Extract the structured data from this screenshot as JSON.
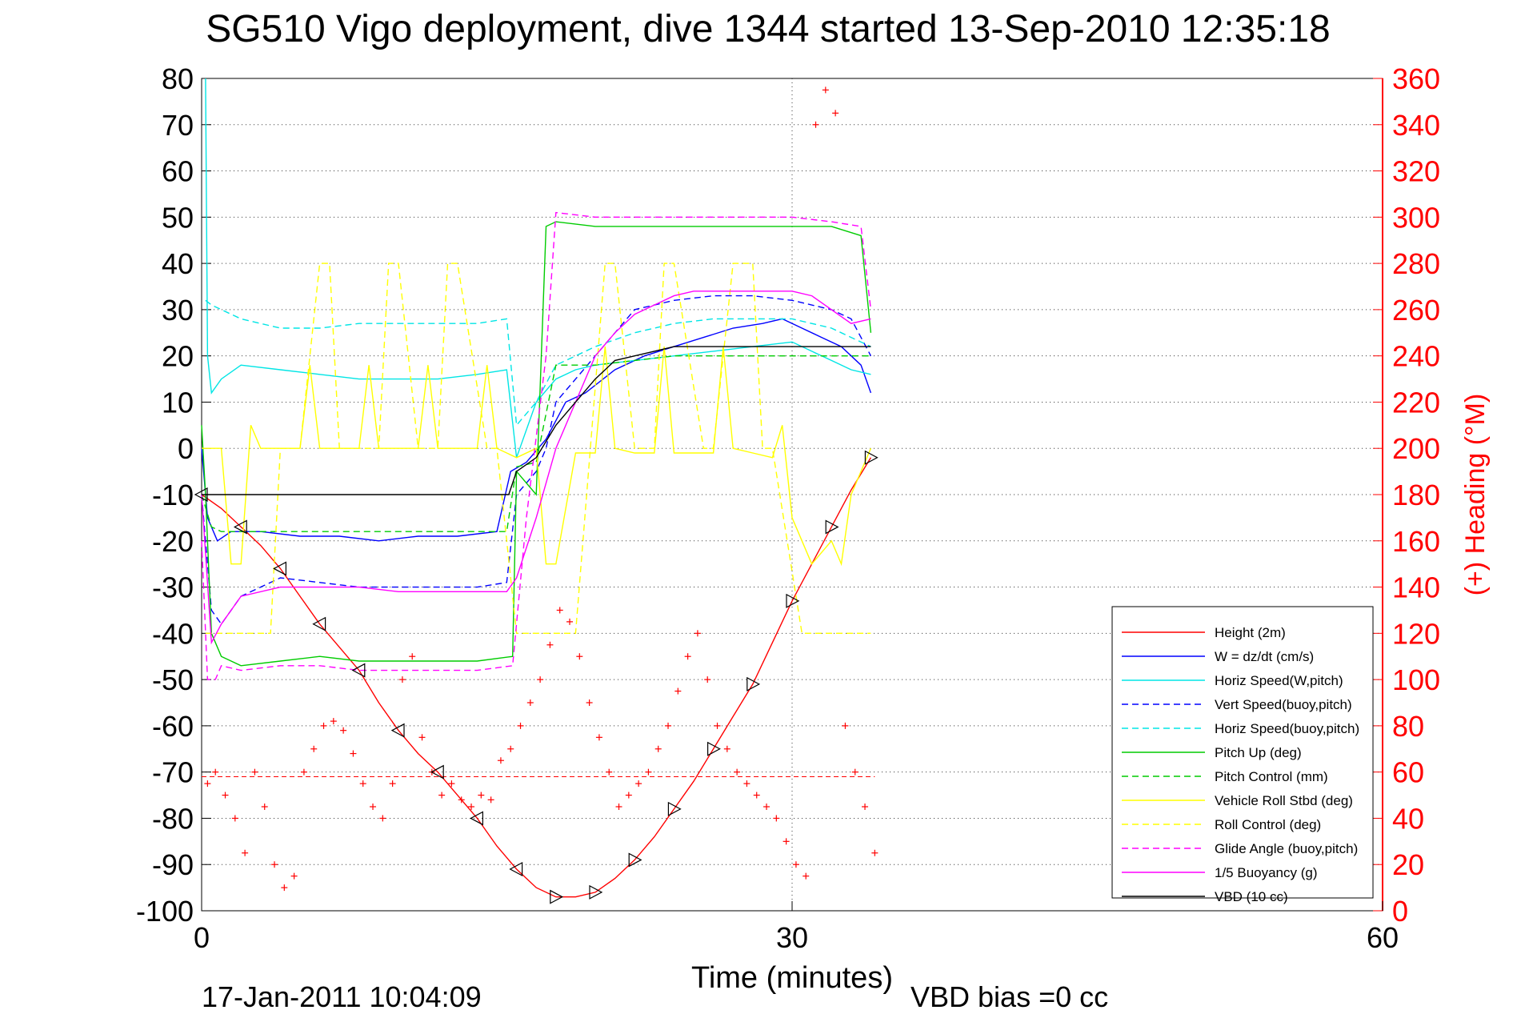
{
  "chart_data": {
    "type": "line",
    "title": "SG510 Vigo deployment, dive 1344 started 13-Sep-2010 12:35:18",
    "xlabel": "Time (minutes)",
    "ylabel_left": "",
    "ylabel_right": "(+) Heading (°M)",
    "xlim": [
      0,
      60
    ],
    "ylim_left": [
      -100,
      80
    ],
    "ylim_right": [
      0,
      360
    ],
    "x_ticks": [
      0,
      30,
      60
    ],
    "y_ticks_left": [
      80,
      70,
      60,
      50,
      40,
      30,
      20,
      10,
      0,
      -10,
      -20,
      -30,
      -40,
      -50,
      -60,
      -70,
      -80,
      -90,
      -100
    ],
    "y_ticks_right": [
      360,
      340,
      320,
      300,
      280,
      260,
      240,
      220,
      200,
      180,
      160,
      140,
      120,
      100,
      80,
      60,
      40,
      20,
      0
    ],
    "grid": "dotted",
    "legend_position": "bottom-right",
    "footer_left": "17-Jan-2011 10:04:09",
    "footer_right": "VBD bias =0 cc",
    "colors": {
      "red": "#ff0000",
      "blue": "#0000ff",
      "cyan": "#00e5e5",
      "green": "#00cc00",
      "yellow": "#ffff00",
      "magenta": "#ff00ff",
      "black": "#000000"
    },
    "series": [
      {
        "name": "Height (2m)",
        "color": "#ff0000",
        "dash": "solid",
        "x": [
          0,
          1,
          2,
          3,
          4,
          5,
          6,
          7,
          8,
          9,
          10,
          11,
          12,
          13,
          14,
          15,
          16,
          17,
          18,
          19,
          20,
          21,
          22,
          23,
          24,
          25,
          26,
          27,
          28,
          29,
          30,
          31,
          32,
          33,
          34
        ],
        "y": [
          -10,
          -13,
          -17,
          -21,
          -26,
          -32,
          -38,
          -43,
          -48,
          -55,
          -61,
          -66,
          -70,
          -75,
          -80,
          -86,
          -91,
          -95,
          -97,
          -97,
          -96,
          -93,
          -89,
          -84,
          -78,
          -72,
          -65,
          -58,
          -51,
          -42,
          -33,
          -25,
          -17,
          -9,
          -2
        ]
      },
      {
        "name": "W = dz/dt (cm/s)",
        "color": "#0000ff",
        "dash": "solid",
        "x": [
          0,
          0.3,
          0.8,
          1.5,
          3,
          5,
          7,
          9,
          11,
          13,
          15,
          15.7,
          16.5,
          17.5,
          18.5,
          19.5,
          21,
          22.5,
          24,
          25.5,
          27,
          28.5,
          29.5,
          30.5,
          31.5,
          32.5,
          33.5,
          34
        ],
        "y": [
          0,
          -15,
          -20,
          -18,
          -18,
          -19,
          -19,
          -20,
          -19,
          -19,
          -18,
          -5,
          -3,
          2,
          10,
          12,
          17,
          20,
          22,
          24,
          26,
          27,
          28,
          26,
          24,
          22,
          18,
          12
        ]
      },
      {
        "name": "Horiz Speed(W,pitch)",
        "color": "#00e5e5",
        "dash": "solid",
        "x": [
          0.2,
          0.3,
          0.5,
          1,
          2,
          4,
          6,
          8,
          10,
          12,
          14,
          15.5,
          16,
          17,
          18,
          19,
          20,
          22,
          24,
          26,
          28,
          30,
          31,
          32,
          33,
          34
        ],
        "y": [
          80,
          20,
          12,
          15,
          18,
          17,
          16,
          15,
          15,
          15,
          16,
          17,
          -2,
          10,
          15,
          17,
          18,
          19,
          20,
          21,
          22,
          23,
          21,
          19,
          17,
          16
        ]
      },
      {
        "name": "Vert Speed(buoy,pitch)",
        "color": "#0000ff",
        "dash": "dashed",
        "x": [
          0,
          0.5,
          1,
          2,
          4,
          6,
          8,
          10,
          12,
          14,
          15.5,
          16,
          17,
          17.5,
          18,
          19,
          20,
          22,
          24,
          26,
          28,
          30,
          32,
          33,
          34
        ],
        "y": [
          -10,
          -35,
          -38,
          -32,
          -28,
          -29,
          -30,
          -30,
          -30,
          -30,
          -29,
          -10,
          -5,
          0,
          10,
          15,
          20,
          30,
          32,
          33,
          33,
          32,
          30,
          28,
          20
        ]
      },
      {
        "name": "Horiz Speed(buoy,pitch)",
        "color": "#00e5e5",
        "dash": "dashed",
        "x": [
          0.2,
          0.5,
          1,
          2,
          4,
          6,
          8,
          10,
          12,
          14,
          15.5,
          16,
          17,
          18,
          19,
          20,
          22,
          24,
          26,
          28,
          30,
          32,
          33,
          34
        ],
        "y": [
          32,
          31,
          30,
          28,
          26,
          26,
          27,
          27,
          27,
          27,
          28,
          5,
          10,
          18,
          20,
          22,
          25,
          27,
          28,
          28,
          28,
          26,
          24,
          22
        ]
      },
      {
        "name": "Pitch Up (deg)",
        "color": "#00cc00",
        "dash": "solid",
        "x": [
          0,
          0.2,
          0.5,
          1,
          2,
          4,
          6,
          8,
          10,
          12,
          14,
          15.8,
          16,
          17,
          17.5,
          18,
          20,
          22,
          24,
          26,
          28,
          30,
          32,
          33.5,
          34
        ],
        "y": [
          5,
          -10,
          -40,
          -45,
          -47,
          -46,
          -45,
          -46,
          -46,
          -46,
          -46,
          -45,
          -5,
          -10,
          48,
          49,
          48,
          48,
          48,
          48,
          48,
          48,
          48,
          46,
          25
        ]
      },
      {
        "name": "Pitch Control (mm)",
        "color": "#00cc00",
        "dash": "dashed",
        "x": [
          0,
          0.5,
          1,
          3,
          6,
          9,
          12,
          15.5,
          16,
          17,
          18,
          20,
          24,
          28,
          31,
          34
        ],
        "y": [
          -10,
          -17,
          -18,
          -18,
          -18,
          -18,
          -18,
          -18,
          -4,
          -3,
          18,
          18,
          20,
          20,
          20,
          20
        ]
      },
      {
        "name": "Vehicle Roll Stbd (deg)",
        "color": "#ffff00",
        "dash": "solid",
        "x": [
          0,
          1,
          1.5,
          2,
          2.5,
          3,
          4,
          5,
          5.5,
          6,
          7,
          8,
          8.5,
          9,
          10,
          11,
          11.5,
          12,
          13,
          14,
          14.5,
          15,
          16,
          17,
          17.5,
          18,
          19,
          20,
          20.5,
          21,
          22,
          23,
          23.5,
          24,
          25,
          26,
          26.5,
          27,
          28,
          29,
          29.5,
          30,
          31,
          32,
          32.5,
          33,
          34
        ],
        "y": [
          0,
          0,
          -25,
          -25,
          5,
          0,
          0,
          0,
          18,
          0,
          0,
          0,
          18,
          0,
          0,
          0,
          18,
          0,
          0,
          0,
          18,
          0,
          -2,
          0,
          -25,
          -25,
          -1,
          -1,
          22,
          0,
          -1,
          -1,
          22,
          -1,
          -1,
          -1,
          22,
          0,
          -1,
          -2,
          5,
          -15,
          -25,
          -20,
          -25,
          -10,
          0
        ]
      },
      {
        "name": "Roll Control (deg)",
        "color": "#ffff00",
        "dash": "dashed",
        "x": [
          0.2,
          1,
          1.5,
          2,
          3,
          3.5,
          4,
          5,
          6,
          6.5,
          7,
          9,
          9.5,
          10,
          11,
          12,
          12.5,
          13,
          14.5,
          15,
          16,
          17,
          17.5,
          18,
          19,
          20.5,
          21,
          22,
          23,
          23.5,
          24,
          25.5,
          26,
          27,
          28,
          28.5,
          29,
          30.5,
          31,
          32,
          33,
          34
        ],
        "y": [
          -40,
          -40,
          -40,
          -40,
          -40,
          -40,
          0,
          0,
          40,
          40,
          0,
          0,
          40,
          40,
          0,
          0,
          40,
          40,
          0,
          0,
          -40,
          -40,
          -40,
          -40,
          -40,
          40,
          40,
          0,
          0,
          40,
          40,
          0,
          0,
          40,
          40,
          0,
          0,
          -40,
          -40,
          -40,
          -40,
          -40
        ]
      },
      {
        "name": "Glide Angle (buoy,pitch)",
        "color": "#ff00ff",
        "dash": "dashed",
        "x": [
          0,
          0.3,
          0.7,
          1,
          2,
          4,
          6,
          8,
          10,
          12,
          14,
          15.8,
          16.5,
          17.5,
          18,
          20,
          22,
          24,
          26,
          28,
          30,
          32,
          33.5,
          34
        ],
        "y": [
          -20,
          -50,
          -50,
          -47,
          -48,
          -47,
          -47,
          -48,
          -48,
          -48,
          -48,
          -47,
          -15,
          20,
          51,
          50,
          50,
          50,
          50,
          50,
          50,
          49,
          48,
          30
        ]
      },
      {
        "name": "1/5 Buoyancy (g)",
        "color": "#ff00ff",
        "dash": "solid",
        "x": [
          0,
          0.5,
          1,
          2,
          4,
          6,
          8,
          10,
          12,
          14,
          15.5,
          16,
          17,
          18,
          19,
          20,
          21,
          22,
          23,
          24,
          25,
          26,
          27,
          28,
          29,
          30,
          31,
          32,
          33,
          34
        ],
        "y": [
          -10,
          -42,
          -38,
          -32,
          -30,
          -30,
          -30,
          -31,
          -31,
          -31,
          -31,
          -28,
          -15,
          0,
          10,
          20,
          25,
          29,
          31,
          33,
          34,
          34,
          34,
          34,
          34,
          34,
          33,
          30,
          27,
          28
        ]
      },
      {
        "name": "VBD (10 cc)",
        "color": "#000000",
        "dash": "solid",
        "x": [
          0,
          0.5,
          2,
          5,
          10,
          15.6,
          16,
          17,
          18,
          19,
          20,
          21,
          22,
          23,
          24,
          26,
          28,
          30,
          32,
          34
        ],
        "y": [
          -10,
          -10,
          -10,
          -10,
          -10,
          -10,
          -5,
          -2,
          5,
          10,
          15,
          19,
          20,
          21,
          22,
          22,
          22,
          22,
          22,
          22
        ]
      },
      {
        "name": "Heading",
        "color": "#ff0000",
        "marker": "+",
        "axis": "right",
        "x": [
          0.3,
          0.7,
          1.2,
          1.7,
          2.2,
          2.7,
          3.2,
          3.7,
          4.2,
          4.7,
          5.2,
          5.7,
          6.2,
          6.7,
          7.2,
          7.7,
          8.2,
          8.7,
          9.2,
          9.7,
          10.2,
          10.7,
          11.2,
          11.7,
          12.2,
          12.7,
          13.2,
          13.7,
          14.2,
          14.7,
          15.2,
          15.7,
          16.2,
          16.7,
          17.2,
          17.7,
          18.2,
          18.7,
          19.2,
          19.7,
          20.2,
          20.7,
          21.2,
          21.7,
          22.2,
          22.7,
          23.2,
          23.7,
          24.2,
          24.7,
          25.2,
          25.7,
          26.2,
          26.7,
          27.2,
          27.7,
          28.2,
          28.7,
          29.2,
          29.7,
          30.2,
          30.7,
          31.2,
          31.7,
          32.2,
          32.7,
          33.2,
          33.7,
          34.2
        ],
        "y": [
          55,
          60,
          50,
          40,
          25,
          60,
          45,
          20,
          10,
          15,
          60,
          70,
          80,
          82,
          78,
          68,
          55,
          45,
          40,
          55,
          100,
          110,
          75,
          60,
          50,
          55,
          48,
          45,
          50,
          48,
          65,
          70,
          80,
          90,
          100,
          115,
          130,
          125,
          110,
          90,
          75,
          60,
          45,
          50,
          55,
          60,
          70,
          80,
          95,
          110,
          120,
          100,
          80,
          70,
          60,
          55,
          50,
          45,
          40,
          30,
          20,
          15,
          340,
          355,
          345,
          80,
          60,
          45,
          25
        ]
      }
    ]
  }
}
